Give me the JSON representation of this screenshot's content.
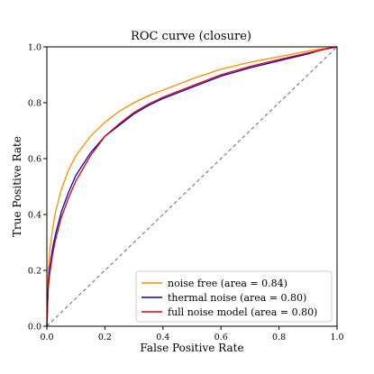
{
  "chart_data": {
    "type": "line",
    "title": "ROC curve (closure)",
    "xlabel": "False Positive Rate",
    "ylabel": "True Positive Rate",
    "xlim": [
      0.0,
      1.0
    ],
    "ylim": [
      0.0,
      1.0
    ],
    "xticks": [
      "0.0",
      "0.2",
      "0.4",
      "0.6",
      "0.8",
      "1.0"
    ],
    "yticks": [
      "0.0",
      "0.2",
      "0.4",
      "0.6",
      "0.8",
      "1.0"
    ],
    "grid": false,
    "legend_position": "lower-right",
    "series": [
      {
        "name": "noise free (area = 0.84)",
        "color": "#ff8c00",
        "x": [
          0.0,
          0.005,
          0.01,
          0.02,
          0.03,
          0.05,
          0.075,
          0.1,
          0.15,
          0.2,
          0.25,
          0.3,
          0.35,
          0.4,
          0.5,
          0.6,
          0.7,
          0.8,
          0.9,
          0.95,
          1.0
        ],
        "y": [
          0.0,
          0.2,
          0.27,
          0.35,
          0.41,
          0.49,
          0.56,
          0.61,
          0.68,
          0.73,
          0.77,
          0.8,
          0.825,
          0.845,
          0.885,
          0.92,
          0.945,
          0.965,
          0.985,
          0.993,
          1.0
        ]
      },
      {
        "name": "thermal noise (area = 0.80)",
        "color": "#0000cc",
        "x": [
          0.0,
          0.005,
          0.01,
          0.02,
          0.03,
          0.05,
          0.075,
          0.1,
          0.15,
          0.2,
          0.25,
          0.3,
          0.35,
          0.4,
          0.5,
          0.6,
          0.7,
          0.8,
          0.9,
          0.95,
          1.0
        ],
        "y": [
          0.0,
          0.15,
          0.21,
          0.28,
          0.33,
          0.41,
          0.48,
          0.54,
          0.62,
          0.68,
          0.72,
          0.76,
          0.79,
          0.815,
          0.855,
          0.895,
          0.925,
          0.95,
          0.975,
          0.99,
          1.0
        ]
      },
      {
        "name": "full noise model (area = 0.80)",
        "color": "#dd0000",
        "x": [
          0.0,
          0.005,
          0.01,
          0.02,
          0.03,
          0.05,
          0.075,
          0.1,
          0.15,
          0.2,
          0.25,
          0.3,
          0.35,
          0.4,
          0.5,
          0.6,
          0.7,
          0.8,
          0.9,
          0.95,
          1.0
        ],
        "y": [
          0.0,
          0.14,
          0.19,
          0.26,
          0.31,
          0.39,
          0.46,
          0.52,
          0.61,
          0.68,
          0.725,
          0.765,
          0.795,
          0.82,
          0.86,
          0.9,
          0.93,
          0.955,
          0.978,
          0.99,
          1.0
        ]
      }
    ],
    "reference_line": {
      "x": [
        0.0,
        1.0
      ],
      "y": [
        0.0,
        1.0
      ],
      "color": "#808080",
      "style": "dashed"
    }
  }
}
